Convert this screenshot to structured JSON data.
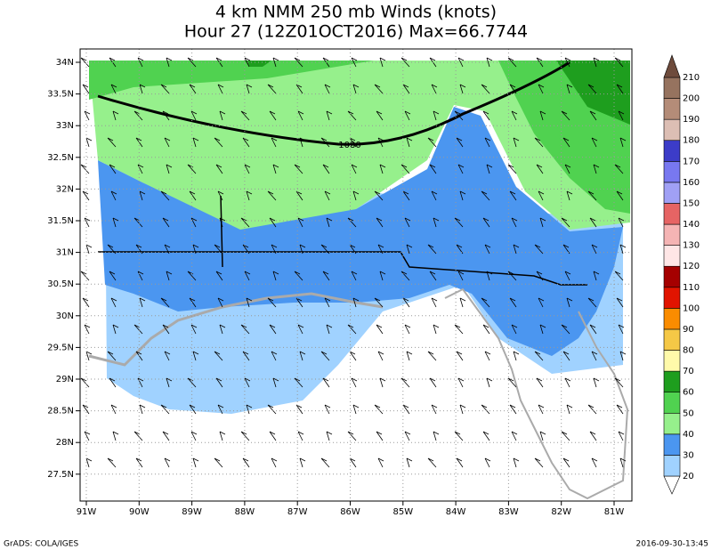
{
  "title": {
    "line1": "4 km NMM 250 mb Winds (knots)",
    "line2": "Hour 27 (12Z01OCT2016) Max=66.7744"
  },
  "map": {
    "lat_labels": [
      "34N",
      "33.5N",
      "33N",
      "32.5N",
      "32N",
      "31.5N",
      "31N",
      "30.5N",
      "30N",
      "29.5N",
      "29N",
      "28.5N",
      "28N",
      "27.5N"
    ],
    "lon_labels": [
      "91W",
      "90W",
      "89W",
      "88W",
      "87W",
      "86W",
      "85W",
      "84W",
      "83W",
      "82W",
      "81W"
    ],
    "contour_label": "1080"
  },
  "colorbar": {
    "levels": [
      20,
      30,
      40,
      50,
      60,
      70,
      80,
      90,
      100,
      110,
      120,
      130,
      140,
      150,
      160,
      170,
      180,
      190,
      200,
      210
    ],
    "colors": [
      "#ffffff",
      "#a0d2ff",
      "#4b96f0",
      "#96f08c",
      "#50d250",
      "#1e9e1e",
      "#fffaaa",
      "#f5c846",
      "#fa8c00",
      "#e11400",
      "#a50000",
      "#ffe6e6",
      "#f5b4b4",
      "#e66464",
      "#a0a0f5",
      "#7878f0",
      "#3c3cc8",
      "#dcbeb4",
      "#b48c78",
      "#96735f",
      "#6e4b3c"
    ]
  },
  "footer": {
    "left": "GrADS: COLA/IGES",
    "right": "2016-09-30-13:45"
  }
}
